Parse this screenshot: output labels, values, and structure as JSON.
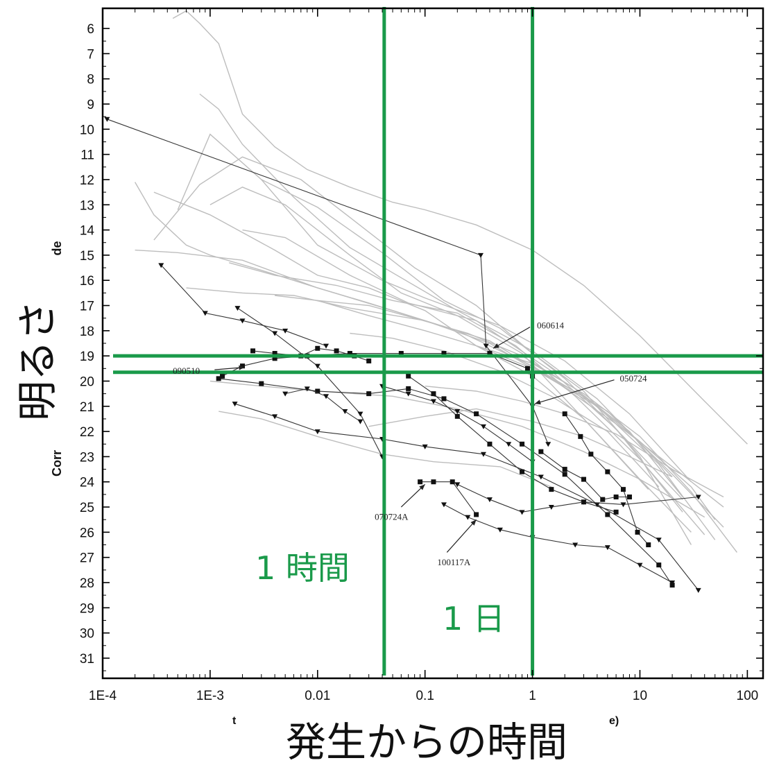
{
  "chart_data": {
    "type": "line",
    "x_scale": "log",
    "y_scale": "linear",
    "y_inverted": true,
    "xlim": [
      0.0001,
      140
    ],
    "ylim": [
      5.2,
      31.8
    ],
    "x_ticks": [
      "1E-4",
      "1E-3",
      "0.01",
      "0.1",
      "1",
      "10",
      "100"
    ],
    "x_tick_values": [
      0.0001,
      0.001,
      0.01,
      0.1,
      1,
      10,
      100
    ],
    "y_ticks": [
      6,
      7,
      8,
      9,
      10,
      11,
      12,
      13,
      14,
      15,
      16,
      17,
      18,
      19,
      20,
      21,
      22,
      23,
      24,
      25,
      26,
      27,
      28,
      29,
      30,
      31
    ],
    "xlabel": "発生からの時間",
    "ylabel": "明るさ",
    "ylabel_remnant_top": "de",
    "ylabel_remnant_bottom": "Corr",
    "xlabel_remnant_left": "t",
    "xlabel_remnant_right": "e)",
    "grid": false,
    "colors": {
      "highlight": "#1a9a4a",
      "dark_series": "#111111",
      "gray_series": "#bdbdbd"
    },
    "reference_lines": {
      "vertical": [
        {
          "x": 0.0417,
          "label": "1 時間"
        },
        {
          "x": 1,
          "label": "1 日"
        }
      ],
      "horizontal": [
        {
          "y": 19.0
        },
        {
          "y": 19.65
        }
      ]
    },
    "annotations": [
      {
        "text": "060614",
        "x": 1.1,
        "y": 17.8
      },
      {
        "text": "090510",
        "x": 0.00045,
        "y": 19.6
      },
      {
        "text": "050724",
        "x": 6.5,
        "y": 19.9
      },
      {
        "text": "070724A",
        "x": 0.034,
        "y": 25.4
      },
      {
        "text": "100117A",
        "x": 0.13,
        "y": 27.2
      }
    ],
    "gray_series": [
      {
        "x": [
          0.00045,
          0.0006,
          0.0008,
          0.0012,
          0.002,
          0.004,
          0.008,
          0.02,
          0.05,
          0.1,
          0.3,
          1,
          3,
          10,
          40,
          100
        ],
        "y": [
          5.6,
          5.3,
          5.8,
          6.6,
          9.4,
          10.7,
          11.6,
          12.3,
          12.9,
          13.2,
          13.8,
          14.8,
          16.2,
          18.2,
          20.8,
          22.5
        ]
      },
      {
        "x": [
          0.0002,
          0.0003,
          0.0006,
          0.001,
          0.003,
          0.01,
          0.03,
          0.1,
          0.4,
          1,
          4,
          15,
          50
        ],
        "y": [
          12.1,
          13.4,
          14.6,
          15.0,
          15.6,
          16.3,
          16.9,
          17.6,
          18.5,
          19.5,
          21.0,
          23.3,
          26.3
        ]
      },
      {
        "x": [
          0.0003,
          0.0008,
          0.002,
          0.007,
          0.02,
          0.08,
          0.3,
          1,
          3,
          10,
          30
        ],
        "y": [
          14.4,
          12.2,
          11.1,
          12.0,
          13.5,
          15.5,
          17.0,
          18.9,
          20.4,
          23.0,
          26.5
        ]
      },
      {
        "x": [
          0.0005,
          0.001,
          0.003,
          0.01,
          0.04,
          0.1,
          0.5,
          2,
          8,
          30
        ],
        "y": [
          13.2,
          10.2,
          12.0,
          14.6,
          16.0,
          16.7,
          17.8,
          19.2,
          21.3,
          24.0
        ]
      },
      {
        "x": [
          0.0008,
          0.0012,
          0.002,
          0.006,
          0.02,
          0.05,
          0.2,
          1,
          4,
          20
        ],
        "y": [
          8.6,
          9.2,
          10.6,
          12.7,
          14.7,
          15.7,
          17.2,
          18.8,
          20.7,
          23.8
        ]
      },
      {
        "x": [
          0.001,
          0.002,
          0.005,
          0.02,
          0.06,
          0.2,
          0.8,
          3,
          12
        ],
        "y": [
          13.0,
          12.3,
          13.0,
          15.0,
          16.5,
          17.4,
          18.9,
          21.5,
          24.3
        ]
      },
      {
        "x": [
          0.0002,
          0.0005,
          0.002,
          0.01,
          0.05,
          0.2,
          1,
          5,
          20,
          60
        ],
        "y": [
          14.8,
          14.9,
          15.2,
          16.3,
          17.2,
          18.0,
          19.4,
          21.2,
          23.7,
          25.8
        ]
      },
      {
        "x": [
          0.0003,
          0.001,
          0.004,
          0.01,
          0.03,
          0.1,
          0.3,
          1,
          3,
          10,
          30
        ],
        "y": [
          12.5,
          13.4,
          14.8,
          15.8,
          16.3,
          17.2,
          18.6,
          19.8,
          21.5,
          23.9,
          26.0
        ]
      },
      {
        "x": [
          0.002,
          0.005,
          0.02,
          0.07,
          0.3,
          1.5,
          6,
          25
        ],
        "y": [
          14.0,
          14.3,
          15.8,
          16.9,
          17.6,
          19.6,
          21.9,
          25.2
        ]
      },
      {
        "x": [
          0.003,
          0.01,
          0.04,
          0.15,
          0.5,
          2,
          7,
          25
        ],
        "y": [
          12.0,
          13.1,
          14.9,
          16.8,
          17.9,
          19.9,
          22.2,
          24.7
        ]
      },
      {
        "x": [
          0.0015,
          0.004,
          0.015,
          0.05,
          0.2,
          0.7,
          2.5,
          10,
          40
        ],
        "y": [
          15.3,
          15.8,
          16.2,
          16.8,
          17.3,
          18.6,
          20.6,
          23.1,
          26.1
        ]
      },
      {
        "x": [
          0.0006,
          0.002,
          0.006,
          0.02,
          0.1,
          0.4,
          1.5,
          6,
          20,
          60
        ],
        "y": [
          16.3,
          16.5,
          16.6,
          17.1,
          17.6,
          18.4,
          19.9,
          21.7,
          23.4,
          25.0
        ]
      },
      {
        "x": [
          0.004,
          0.01,
          0.03,
          0.1,
          0.3,
          1,
          3,
          10,
          30,
          50
        ],
        "y": [
          16.6,
          16.8,
          17.4,
          18.0,
          18.6,
          19.5,
          20.6,
          22.4,
          24.2,
          25.5
        ]
      },
      {
        "x": [
          0.01,
          0.03,
          0.08,
          0.25,
          0.8,
          2.5,
          8,
          25
        ],
        "y": [
          16.8,
          17.0,
          17.5,
          18.1,
          19.0,
          20.3,
          22.0,
          24.6
        ]
      },
      {
        "x": [
          0.02,
          0.05,
          0.15,
          0.5,
          1.5,
          5,
          15
        ],
        "y": [
          18.1,
          18.3,
          18.8,
          19.6,
          20.6,
          22.0,
          24.2
        ]
      },
      {
        "x": [
          0.001,
          0.003,
          0.01,
          0.05,
          0.2,
          0.8,
          3,
          10,
          40
        ],
        "y": [
          20.0,
          20.2,
          20.4,
          20.6,
          21.1,
          21.8,
          22.8,
          23.9,
          25.4
        ]
      },
      {
        "x": [
          0.0012,
          0.003,
          0.01,
          0.04,
          0.12,
          0.5,
          1.5
        ],
        "y": [
          21.2,
          21.5,
          22.2,
          22.9,
          23.2,
          23.4,
          24.2
        ]
      },
      {
        "x": [
          0.03,
          0.1,
          0.3,
          1,
          3,
          8,
          20
        ],
        "y": [
          21.8,
          21.4,
          21.1,
          21.6,
          22.2,
          23.0,
          23.8
        ]
      },
      {
        "x": [
          0.1,
          0.3,
          0.8,
          2,
          6,
          20,
          60
        ],
        "y": [
          20.2,
          20.4,
          20.8,
          21.3,
          22.1,
          23.5,
          24.6
        ]
      },
      {
        "x": [
          0.3,
          1,
          3,
          10,
          30,
          80
        ],
        "y": [
          18.6,
          19.3,
          20.5,
          22.2,
          24.4,
          26.8
        ]
      }
    ],
    "dark_series": [
      {
        "x": [
          0.00011,
          0.33,
          0.37,
          1.0,
          1.4
        ],
        "y": [
          9.6,
          15.0,
          18.6,
          21.0,
          22.5
        ],
        "marker": "triangle"
      },
      {
        "x": [
          0.00035,
          0.0009,
          0.002,
          0.005,
          0.012
        ],
        "y": [
          15.4,
          17.3,
          17.6,
          18.0,
          18.6
        ],
        "marker": "triangle"
      },
      {
        "x": [
          0.0013,
          0.002,
          0.004,
          0.008,
          0.02,
          0.06,
          0.15,
          0.4,
          0.9,
          1.0
        ],
        "y": [
          19.8,
          19.4,
          19.1,
          19.0,
          18.9,
          18.9,
          18.9,
          18.9,
          19.5,
          19.8
        ],
        "marker": "square"
      },
      {
        "x": [
          0.0025,
          0.004,
          0.007,
          0.01,
          0.015,
          0.022,
          0.03
        ],
        "y": [
          18.8,
          18.9,
          19.0,
          18.7,
          18.8,
          19.0,
          19.2
        ],
        "marker": "square"
      },
      {
        "x": [
          0.0012,
          0.003,
          0.01,
          0.03,
          0.07,
          0.15,
          0.3,
          0.8,
          2.0,
          5.0,
          15.0,
          20.0
        ],
        "y": [
          19.9,
          20.1,
          20.4,
          20.5,
          20.3,
          20.7,
          21.3,
          22.5,
          23.7,
          25.3,
          27.3,
          28.1
        ],
        "marker": "square"
      },
      {
        "x": [
          0.0018,
          0.004,
          0.01,
          0.025,
          0.04
        ],
        "y": [
          17.1,
          18.1,
          19.4,
          21.3,
          23.0
        ],
        "marker": "triangle"
      },
      {
        "x": [
          0.0017,
          0.004,
          0.01,
          0.04,
          0.1,
          0.35,
          1.2,
          4.0,
          15.0,
          35.0
        ],
        "y": [
          20.9,
          21.4,
          22.0,
          22.3,
          22.6,
          22.9,
          23.8,
          24.9,
          26.3,
          28.3
        ],
        "marker": "triangle"
      },
      {
        "x": [
          0.005,
          0.008,
          0.012,
          0.018,
          0.025
        ],
        "y": [
          20.5,
          20.3,
          20.6,
          21.2,
          21.6
        ],
        "marker": "triangle"
      },
      {
        "x": [
          0.04,
          0.07,
          0.12,
          0.2,
          0.35,
          0.6,
          1.0
        ],
        "y": [
          20.2,
          20.5,
          20.8,
          21.2,
          21.8,
          22.5,
          23.2
        ],
        "marker": "triangle"
      },
      {
        "x": [
          0.07,
          0.12,
          0.2,
          0.4,
          0.8,
          1.5,
          3.0,
          6.0
        ],
        "y": [
          19.8,
          20.5,
          21.4,
          22.5,
          23.6,
          24.3,
          24.8,
          25.2
        ],
        "marker": "square"
      },
      {
        "x": [
          0.09,
          0.12,
          0.18,
          0.3
        ],
        "y": [
          24.0,
          24.0,
          24.0,
          25.3
        ],
        "marker": "square"
      },
      {
        "x": [
          0.15,
          0.25,
          0.5,
          1.0,
          2.5,
          5.0,
          10.0,
          20.0
        ],
        "y": [
          24.9,
          25.4,
          25.9,
          26.2,
          26.5,
          26.6,
          27.3,
          28.0
        ],
        "marker": "triangle"
      },
      {
        "x": [
          0.2,
          0.4,
          0.8,
          1.5,
          3.0,
          7.0,
          35.0
        ],
        "y": [
          24.1,
          24.7,
          25.2,
          25.0,
          24.8,
          24.9,
          24.6
        ],
        "marker": "triangle"
      },
      {
        "x": [
          1.2,
          2.0,
          3.0,
          4.5,
          6.0,
          8.0
        ],
        "y": [
          22.8,
          23.5,
          23.9,
          24.7,
          24.6,
          24.6
        ],
        "marker": "square"
      },
      {
        "x": [
          2.0,
          2.8,
          3.5,
          5.0,
          7.0,
          9.5,
          12.0
        ],
        "y": [
          21.3,
          22.2,
          22.9,
          23.6,
          24.3,
          26.0,
          26.5
        ],
        "marker": "square"
      }
    ]
  },
  "labels": {
    "overlay_hour": "1 時間",
    "overlay_day": "1 日"
  }
}
